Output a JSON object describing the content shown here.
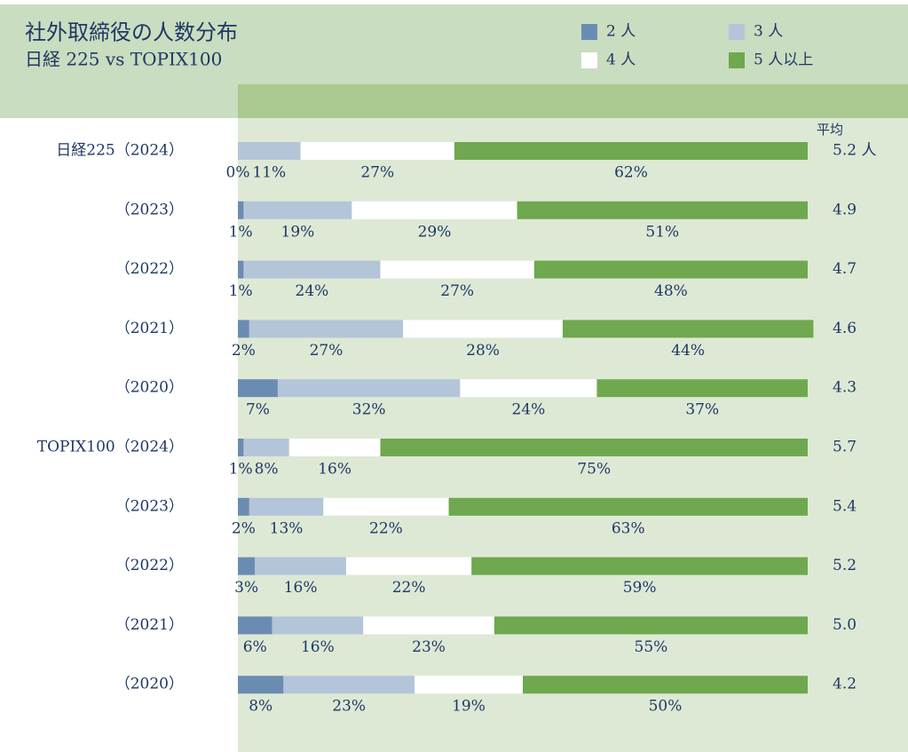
{
  "chart_data": {
    "type": "stacked_bar",
    "title": "社外取締役の人数分布",
    "subtitle": "日経 225 vs TOPIX100",
    "categories": [
      "日経225（2024）",
      "（2023）",
      "（2022）",
      "（2021）",
      "（2020）",
      "TOPIX100（2024）",
      "（2023）",
      "（2022）",
      "（2021）",
      "（2020）"
    ],
    "xlim": [
      0,
      100
    ],
    "series": [
      {
        "name": "2 人",
        "color": "#6b8cb2",
        "values": [
          0,
          1,
          1,
          2,
          7,
          1,
          2,
          3,
          6,
          8
        ],
        "value_labels": [
          "0%",
          "1%",
          "1%",
          "2%",
          "7%",
          "1%",
          "2%",
          "3%",
          "6%",
          "8%"
        ]
      },
      {
        "name": "3 人",
        "color": "#b4c5d9",
        "values": [
          11,
          19,
          24,
          27,
          32,
          8,
          13,
          16,
          16,
          23
        ],
        "value_labels": [
          "11%",
          "19%",
          "24%",
          "27%",
          "32%",
          "8%",
          "13%",
          "16%",
          "16%",
          "23%"
        ]
      },
      {
        "name": "4 人",
        "color": "#ffffff",
        "values": [
          27,
          29,
          27,
          28,
          24,
          16,
          22,
          22,
          23,
          19
        ],
        "value_labels": [
          "27%",
          "29%",
          "27%",
          "28%",
          "24%",
          "16%",
          "22%",
          "22%",
          "23%",
          "19%"
        ]
      },
      {
        "name": "5 人以上",
        "color": "#6fa84e",
        "values": [
          62,
          51,
          48,
          44,
          37,
          75,
          63,
          59,
          55,
          50
        ],
        "value_labels": [
          "62%",
          "51%",
          "48%",
          "44%",
          "37%",
          "75%",
          "63%",
          "59%",
          "55%",
          "50%"
        ]
      }
    ],
    "average": {
      "name": "平均",
      "values": [
        5.2,
        4.9,
        4.7,
        4.6,
        4.3,
        5.7,
        5.4,
        5.2,
        5.0,
        4.2
      ],
      "value_labels": [
        "5.2 人",
        "4.9",
        "4.7",
        "4.6",
        "4.3",
        "5.7",
        "5.4",
        "5.2",
        "5.0",
        "4.2"
      ]
    }
  }
}
